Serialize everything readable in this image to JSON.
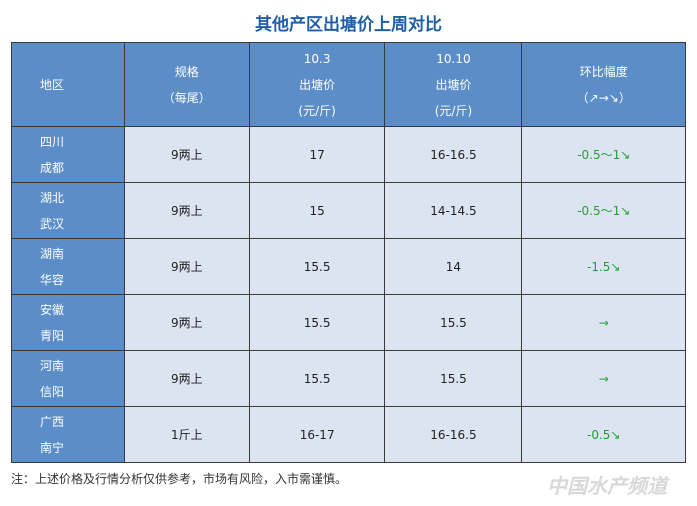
{
  "title": "其他产区出塘价上周对比",
  "table": {
    "header": [
      [
        "地区"
      ],
      [
        "规格",
        "（每尾）"
      ],
      [
        "10.3",
        "出塘价",
        "(元/斤)"
      ],
      [
        "10.10",
        "出塘价",
        "(元/斤)"
      ],
      [
        "环比幅度",
        "（↗→↘）"
      ]
    ],
    "rows": [
      [
        [
          "四川",
          "成都"
        ],
        "9两上",
        "17",
        "16-16.5",
        "-0.5～1↘"
      ],
      [
        [
          "湖北",
          "武汉"
        ],
        "9两上",
        "15",
        "14-14.5",
        "-0.5～1↘"
      ],
      [
        [
          "湖南",
          "华容"
        ],
        "9两上",
        "15.5",
        "14",
        "-1.5↘"
      ],
      [
        [
          "安徽",
          "青阳"
        ],
        "9两上",
        "15.5",
        "15.5",
        "→"
      ],
      [
        [
          "河南",
          "信阳"
        ],
        "9两上",
        "15.5",
        "15.5",
        "→"
      ],
      [
        [
          "广西",
          "南宁"
        ],
        "1斤上",
        "16-17",
        "16-16.5",
        "-0.5↘"
      ]
    ]
  },
  "note": "注：上述价格及行情分析仅供参考，市场有风险，入市需谨慎。",
  "watermark": "中国水产频道"
}
